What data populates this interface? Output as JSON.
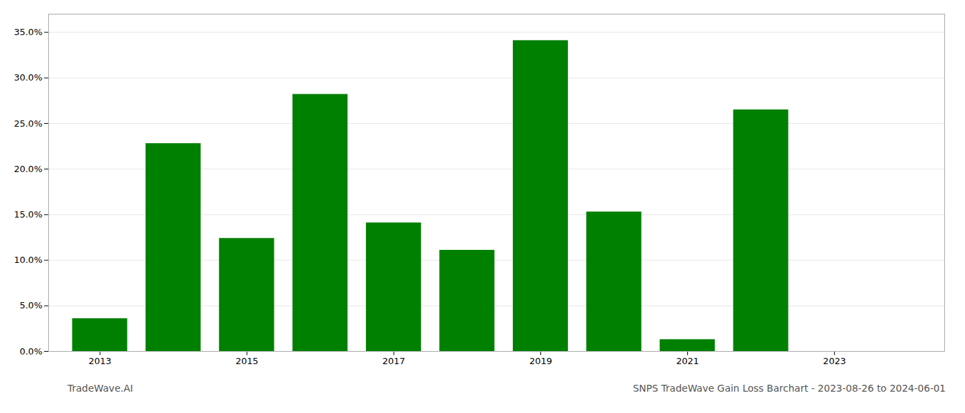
{
  "chart_data": {
    "type": "bar",
    "title": "SNPS TradeWave Gain Loss Barchart - 2023-08-26 to 2024-06-01",
    "annotations": [
      "TradeWave.AI"
    ],
    "x": [
      2013,
      2014,
      2015,
      2016,
      2017,
      2018,
      2019,
      2020,
      2021,
      2022
    ],
    "values": [
      0.036,
      0.228,
      0.124,
      0.282,
      0.141,
      0.111,
      0.341,
      0.153,
      0.013,
      0.265
    ],
    "color": "#008000",
    "xlim": [
      2012.3,
      2024.5
    ],
    "xticks": [
      2013,
      2015,
      2017,
      2019,
      2021,
      2023
    ],
    "ylim": [
      0,
      0.37
    ],
    "yticks": [
      {
        "value": 0.0,
        "label": "0.0%"
      },
      {
        "value": 0.05,
        "label": "5.0%"
      },
      {
        "value": 0.1,
        "label": "10.0%"
      },
      {
        "value": 0.15,
        "label": "15.0%"
      },
      {
        "value": 0.2,
        "label": "20.0%"
      },
      {
        "value": 0.25,
        "label": "25.0%"
      },
      {
        "value": 0.3,
        "label": "30.0%"
      },
      {
        "value": 0.35,
        "label": "35.0%"
      }
    ],
    "grid": true
  }
}
